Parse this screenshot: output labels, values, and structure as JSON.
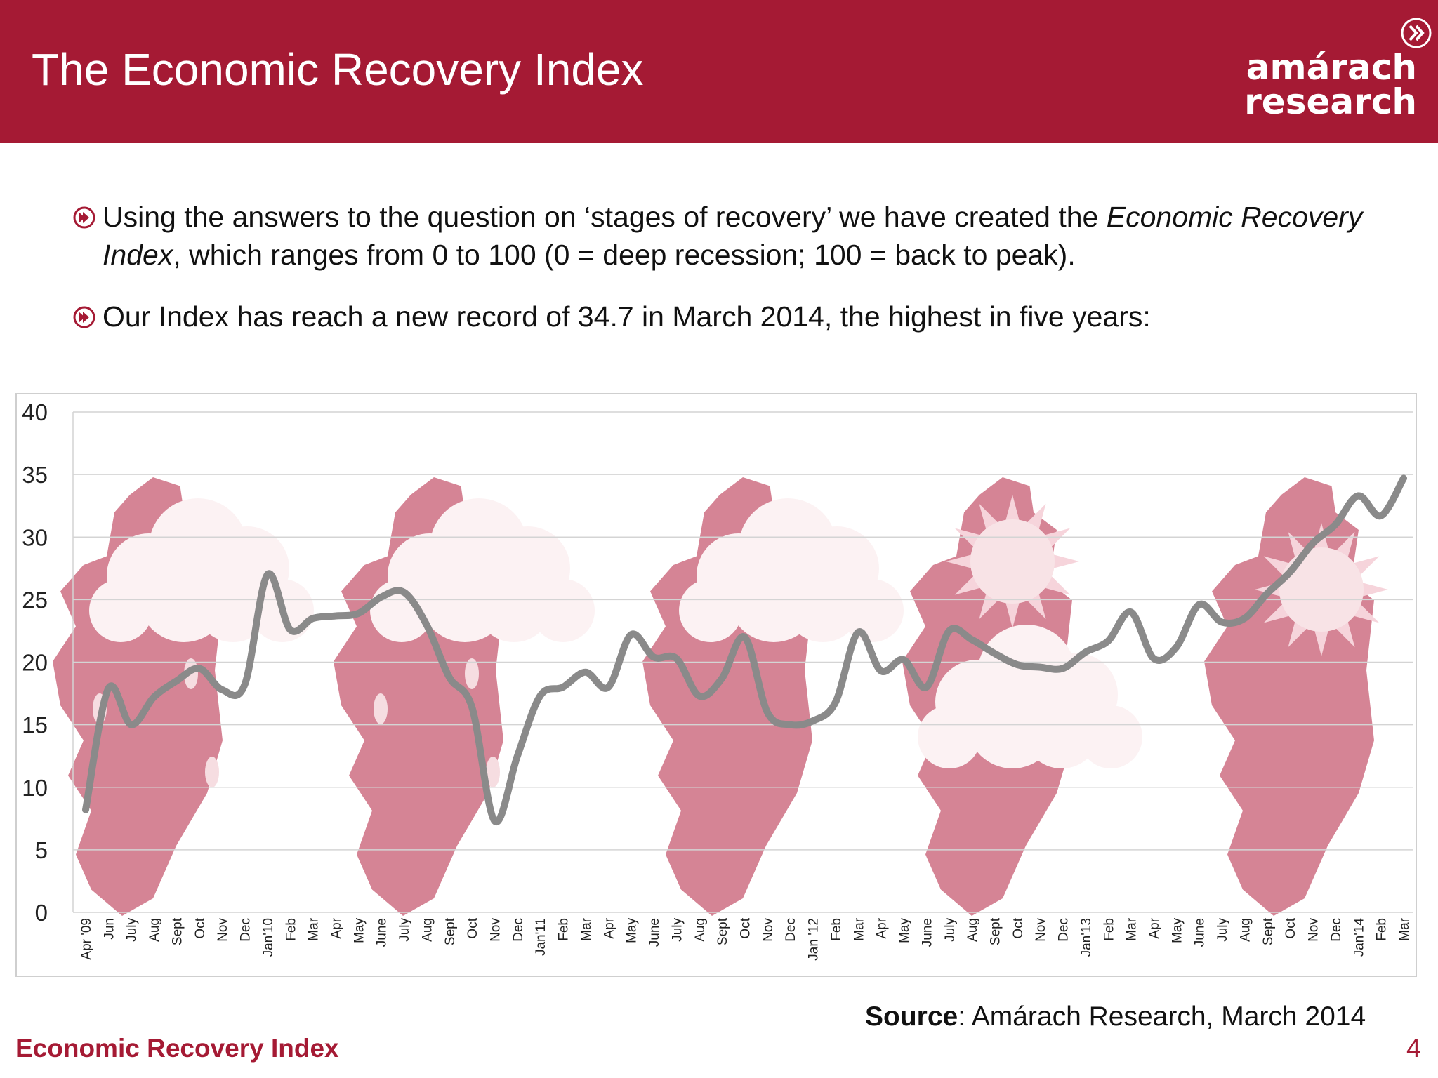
{
  "header": {
    "title": "The Economic Recovery Index",
    "logo_line1": "amárach",
    "logo_line2": "research",
    "logo_icon": "double-chevron-circle-icon"
  },
  "bullets": [
    {
      "icon": "chevron-bullet-icon",
      "parts": [
        "Using the answers to the question on ‘stages of recovery’ we have created the ",
        "Economic Recovery Index",
        ", which ranges from 0 to 100 (0 = deep recession; 100 = back to peak)."
      ]
    },
    {
      "icon": "chevron-bullet-icon",
      "text": "Our Index has reach a new record of 34.7 in March 2014, the highest in five years:"
    }
  ],
  "source": {
    "label": "Source",
    "text": ": Amárach Research, March 2014"
  },
  "footer": {
    "left": "Economic Recovery Index",
    "page": "4"
  },
  "colors": {
    "brand": "#a51a34",
    "line": "#8a8a8a",
    "map": "#c85b72"
  },
  "chart_data": {
    "type": "line",
    "title": "",
    "xlabel": "",
    "ylabel": "",
    "ylim": [
      0,
      40
    ],
    "yticks": [
      "0",
      "5",
      "10",
      "15",
      "20",
      "25",
      "30",
      "35",
      "40"
    ],
    "grid": true,
    "legend": "none",
    "background_art": "weather-map-illustrations",
    "categories": [
      "Apr '09",
      "Jun",
      "July",
      "Aug",
      "Sept",
      "Oct",
      "Nov",
      "Dec",
      "Jan'10",
      "Feb",
      "Mar",
      "Apr",
      "May",
      "June",
      "July",
      "Aug",
      "Sept",
      "Oct",
      "Nov",
      "Dec",
      "Jan'11",
      "Feb",
      "Mar",
      "Apr",
      "May",
      "June",
      "July",
      "Aug",
      "Sept",
      "Oct",
      "Nov",
      "Dec",
      "Jan '12",
      "Feb",
      "Mar",
      "Apr",
      "May",
      "June",
      "July",
      "Aug",
      "Sept",
      "Oct",
      "Nov",
      "Dec",
      "Jan'13",
      "Feb",
      "Mar",
      "Apr",
      "May",
      "June",
      "July",
      "Aug",
      "Sept",
      "Oct",
      "Nov",
      "Dec",
      "Jan'14",
      "Feb",
      "Mar"
    ],
    "series": [
      {
        "values": [
          8.2,
          17.9,
          15.0,
          17.2,
          18.5,
          19.5,
          17.8,
          18.2,
          27.0,
          22.6,
          23.5,
          23.7,
          23.9,
          25.2,
          25.6,
          23.0,
          18.8,
          16.4,
          7.3,
          12.5,
          17.3,
          18.0,
          19.2,
          18.0,
          22.2,
          20.4,
          20.3,
          17.3,
          18.7,
          22.0,
          16.0,
          15.0,
          15.3,
          16.8,
          22.4,
          19.3,
          20.2,
          18.0,
          22.5,
          21.8,
          20.7,
          19.8,
          19.6,
          19.5,
          20.8,
          21.7,
          24.0,
          20.3,
          21.2,
          24.6,
          23.2,
          23.5,
          25.5,
          27.2,
          29.5,
          31.0,
          33.3,
          31.7,
          34.7
        ]
      }
    ]
  }
}
